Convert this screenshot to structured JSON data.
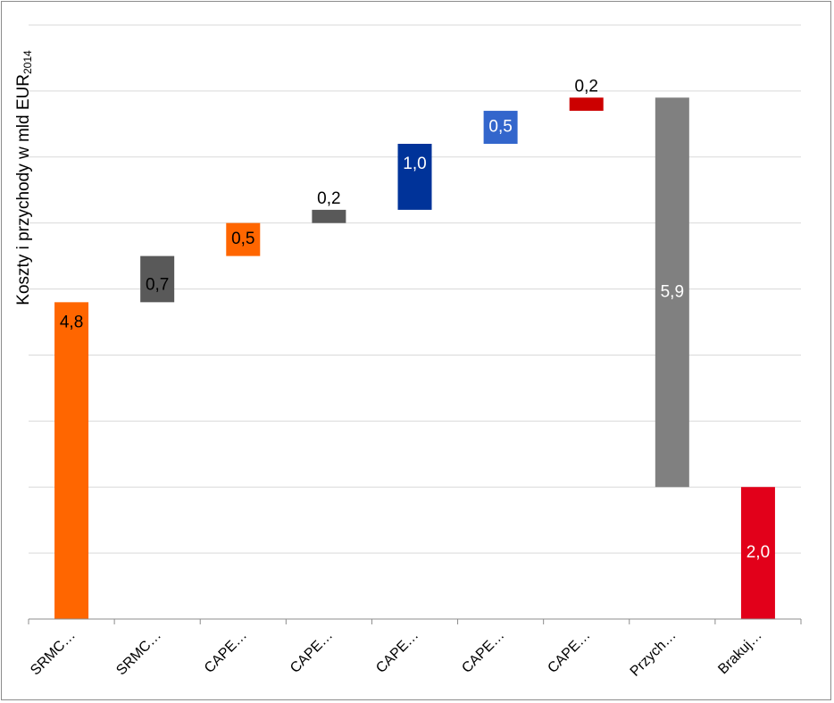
{
  "chart_data": {
    "type": "bar",
    "subtype": "waterfall",
    "ylabel": "Koszty i przychody w mld EUR",
    "ylabel_subscript": "2014",
    "categories": [
      "SRMC…",
      "SRMC…",
      "CAPE…",
      "CAPE…",
      "CAPE…",
      "CAPE…",
      "CAPE…",
      "Przych…",
      "Brakuj…"
    ],
    "bars": [
      {
        "base": 0.0,
        "value": 4.8,
        "label": "4,8",
        "color": "#ff6600",
        "label_color": "#000000",
        "label_pos": "inside-top"
      },
      {
        "base": 4.8,
        "value": 0.7,
        "label": "0,7",
        "color": "#595959",
        "label_color": "#000000",
        "label_pos": "inside-bottom"
      },
      {
        "base": 5.5,
        "value": 0.5,
        "label": "0,5",
        "color": "#ff6600",
        "label_color": "#000000",
        "label_pos": "center"
      },
      {
        "base": 6.0,
        "value": 0.2,
        "label": "0,2",
        "color": "#595959",
        "label_color": "#000000",
        "label_pos": "above"
      },
      {
        "base": 6.2,
        "value": 1.0,
        "label": "1,0",
        "color": "#003399",
        "label_color": "#ffffff",
        "label_pos": "inside-top"
      },
      {
        "base": 7.2,
        "value": 0.5,
        "label": "0,5",
        "color": "#3366cc",
        "label_color": "#ffffff",
        "label_pos": "center"
      },
      {
        "base": 7.7,
        "value": 0.2,
        "label": "0,2",
        "color": "#cc0000",
        "label_color": "#000000",
        "label_pos": "above"
      },
      {
        "base": 2.0,
        "value": 5.9,
        "label": "5,9",
        "color": "#808080",
        "label_color": "#ffffff",
        "label_pos": "center"
      },
      {
        "base": 0.0,
        "value": 2.0,
        "label": "2,0",
        "color": "#e2001a",
        "label_color": "#ffffff",
        "label_pos": "center"
      }
    ],
    "ylim": [
      0,
      9
    ],
    "ytick_step": 1,
    "grid": true,
    "legend": "none"
  }
}
